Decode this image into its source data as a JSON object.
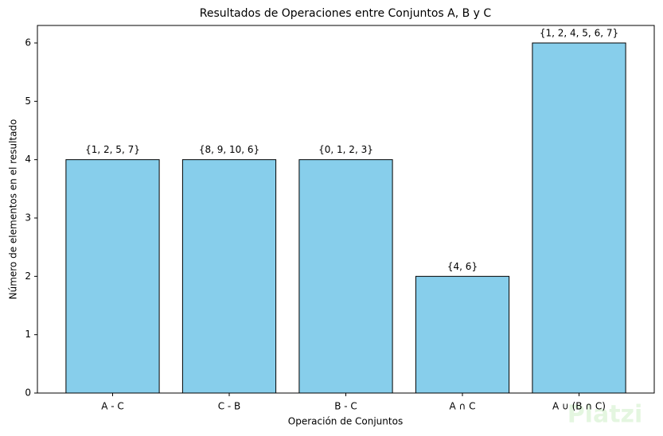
{
  "chart_data": {
    "type": "bar",
    "title": "Resultados de Operaciones entre Conjuntos A, B y C",
    "xlabel": "Operación de Conjuntos",
    "ylabel": "Número de elementos en el resultado",
    "categories": [
      "A - C",
      "C - B",
      "B - C",
      "A ∩ C",
      "A ∪ (B ∩ C)"
    ],
    "values": [
      4,
      4,
      4,
      2,
      6
    ],
    "bar_labels": [
      "{1, 2, 5, 7}",
      "{8, 9, 10, 6}",
      "{0, 1, 2, 3}",
      "{4, 6}",
      "{1, 2, 4, 5, 6, 7}"
    ],
    "color": "#87ceeb",
    "ylim": [
      0,
      6.3
    ],
    "yticks": [
      0,
      1,
      2,
      3,
      4,
      5,
      6
    ],
    "watermark": "Platzi"
  }
}
